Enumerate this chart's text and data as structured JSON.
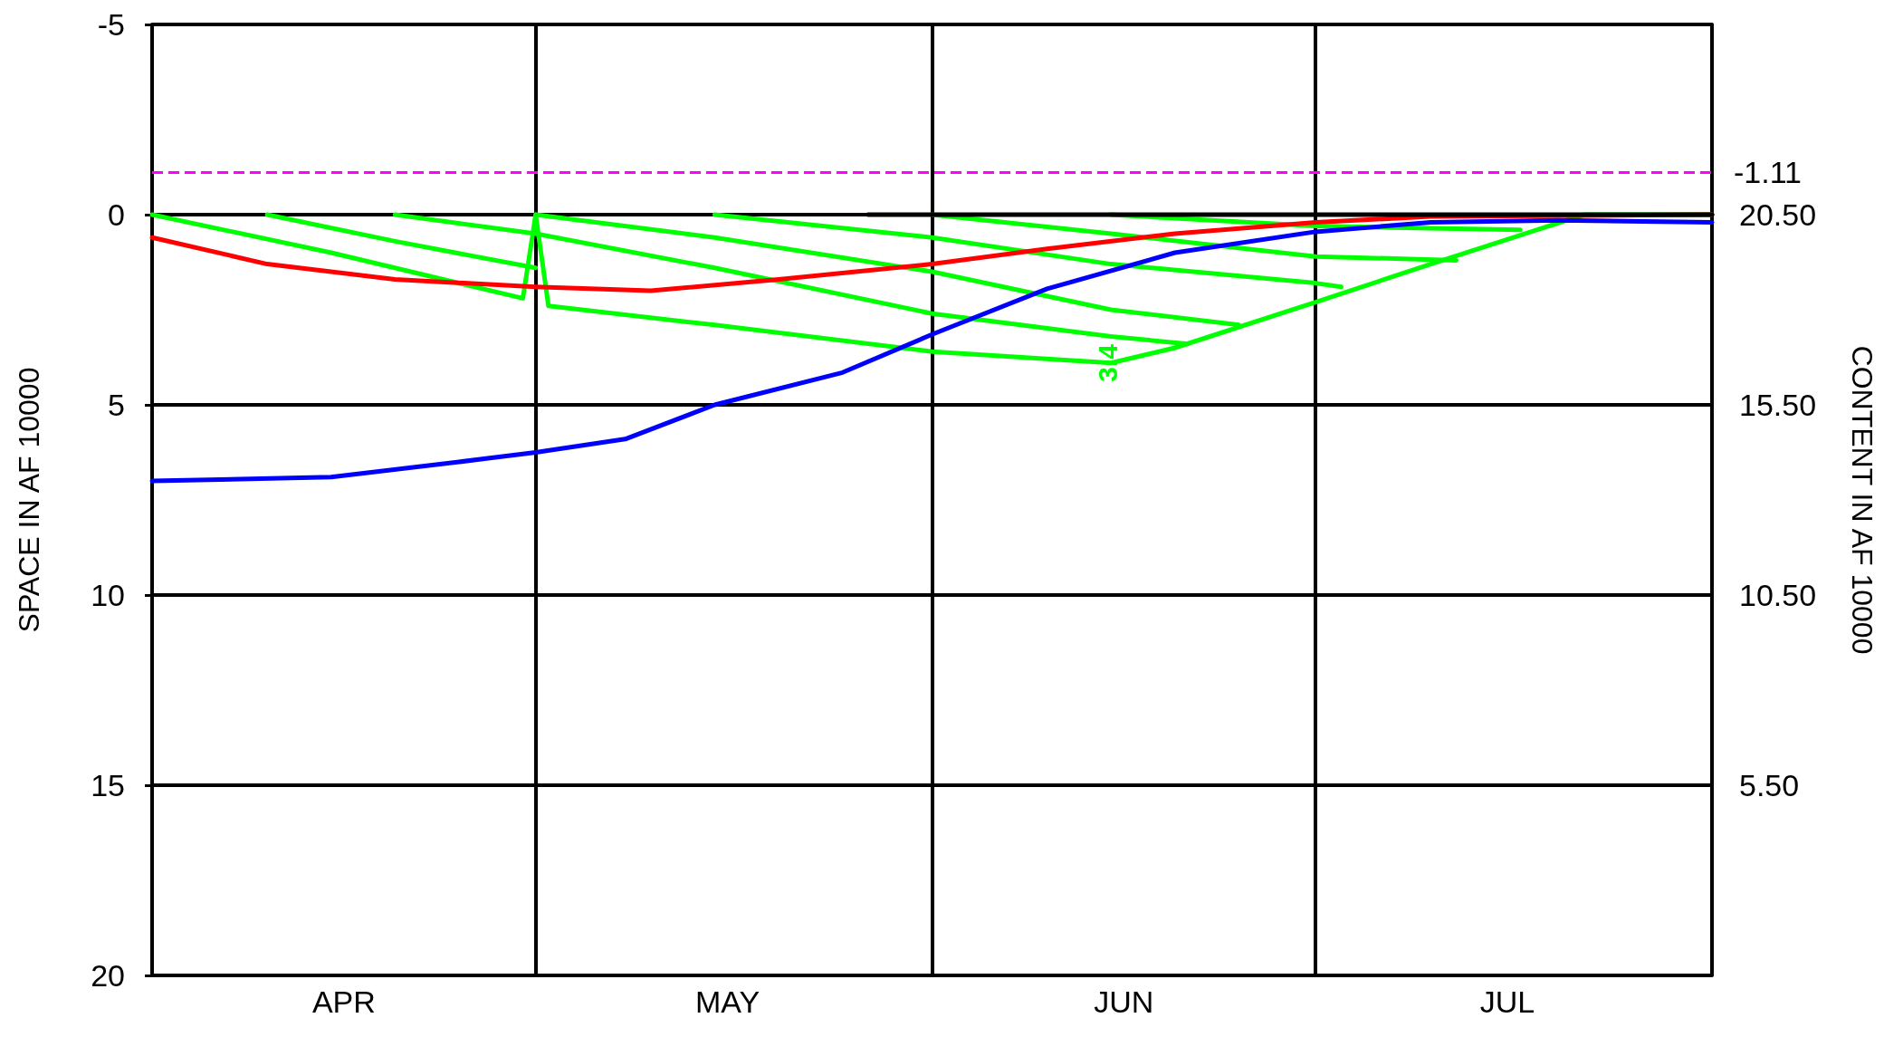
{
  "chart_data": {
    "type": "line",
    "ylabel": "SPACE IN AF 10000",
    "y2label": "CONTENT IN AF 10000",
    "xlim": [
      "--04-01",
      "--08-01"
    ],
    "xticks": [
      {
        "value": "--04-01",
        "label": null
      },
      {
        "value": "--04-16",
        "label": "APR"
      },
      {
        "value": "--05-01",
        "label": null
      },
      {
        "value": "--05-16",
        "label": "MAY"
      },
      {
        "value": "--06-01",
        "label": null
      },
      {
        "value": "--06-16",
        "label": "JUN"
      },
      {
        "value": "--07-01",
        "label": null
      },
      {
        "value": "--07-16",
        "label": "JUL"
      },
      {
        "value": "--08-01",
        "label": null
      }
    ],
    "ylim": [
      20,
      -5
    ],
    "yticks": [
      -5,
      0,
      5,
      10,
      15,
      20
    ],
    "y2lim": [
      0.5,
      25.5
    ],
    "y2ticks": [
      {
        "value": 20.5,
        "label": "20.50"
      },
      {
        "value": 15.5,
        "label": "15.50"
      },
      {
        "value": 10.5,
        "label": "10.50"
      },
      {
        "value": 5.5,
        "label": "5.50"
      }
    ],
    "grid": true,
    "marker": "none",
    "line_style": "solid",
    "ref_lines": [
      {
        "axis": "y",
        "value": -1.11,
        "label": "-1.11",
        "color": "#ff00ff",
        "line_style": "dashed"
      }
    ],
    "annotations": [
      "3.4"
    ],
    "series": [
      {
        "color": "#00ff00",
        "x": [
          "--04-01",
          "--04-15",
          "--04-30",
          "--05-01",
          "--05-02",
          "--05-15",
          "--06-01",
          "--06-15",
          "--06-20",
          "--07-01",
          "--07-10",
          "--07-22",
          "--08-01"
        ],
        "values": [
          0,
          1.0,
          2.2,
          0,
          2.4,
          2.9,
          3.6,
          3.9,
          3.5,
          2.3,
          1.3,
          0,
          0
        ]
      },
      {
        "color": "#00ff00",
        "x": [
          "--04-10",
          "--04-20",
          "--05-01"
        ],
        "values": [
          0,
          0.7,
          1.4
        ]
      },
      {
        "color": "#00ff00",
        "x": [
          "--04-20",
          "--05-01",
          "--05-15",
          "--06-01",
          "--06-15",
          "--06-21"
        ],
        "values": [
          0,
          0.5,
          1.4,
          2.6,
          3.2,
          3.4
        ]
      },
      {
        "color": "#00ff00",
        "x": [
          "--05-01",
          "--05-15",
          "--06-01",
          "--06-15",
          "--06-25"
        ],
        "values": [
          0,
          0.6,
          1.5,
          2.5,
          2.9
        ]
      },
      {
        "color": "#00ff00",
        "x": [
          "--05-15",
          "--06-01",
          "--06-15",
          "--07-01",
          "--07-03"
        ],
        "values": [
          0,
          0.6,
          1.3,
          1.8,
          1.9
        ]
      },
      {
        "color": "#00ff00",
        "x": [
          "--06-01",
          "--06-15",
          "--07-01",
          "--07-12"
        ],
        "values": [
          0,
          0.5,
          1.1,
          1.2
        ]
      },
      {
        "color": "#00ff00",
        "x": [
          "--06-15",
          "--07-01",
          "--07-17"
        ],
        "values": [
          0,
          0.3,
          0.4
        ]
      },
      {
        "color": "#ff0000",
        "x": [
          "--04-01",
          "--04-10",
          "--04-20",
          "--05-01",
          "--05-10",
          "--05-20",
          "--06-01",
          "--06-10",
          "--06-20",
          "--07-01",
          "--07-10",
          "--08-01"
        ],
        "values": [
          0.6,
          1.3,
          1.7,
          1.9,
          2.0,
          1.7,
          1.3,
          0.9,
          0.5,
          0.2,
          0.05,
          0
        ]
      },
      {
        "color": "#0000ff",
        "x": [
          "--04-01",
          "--04-15",
          "--04-25",
          "--05-01",
          "--05-08",
          "--05-15",
          "--05-25",
          "--06-01",
          "--06-10",
          "--06-20",
          "--07-01",
          "--07-10",
          "--07-20",
          "--08-01"
        ],
        "values": [
          7.0,
          6.9,
          6.5,
          6.25,
          5.9,
          5.0,
          4.15,
          3.15,
          1.95,
          1.0,
          0.45,
          0.2,
          0.15,
          0.2
        ]
      },
      {
        "color": "#000000",
        "x": [
          "--05-27",
          "--08-01"
        ],
        "values": [
          0,
          0
        ]
      }
    ]
  }
}
